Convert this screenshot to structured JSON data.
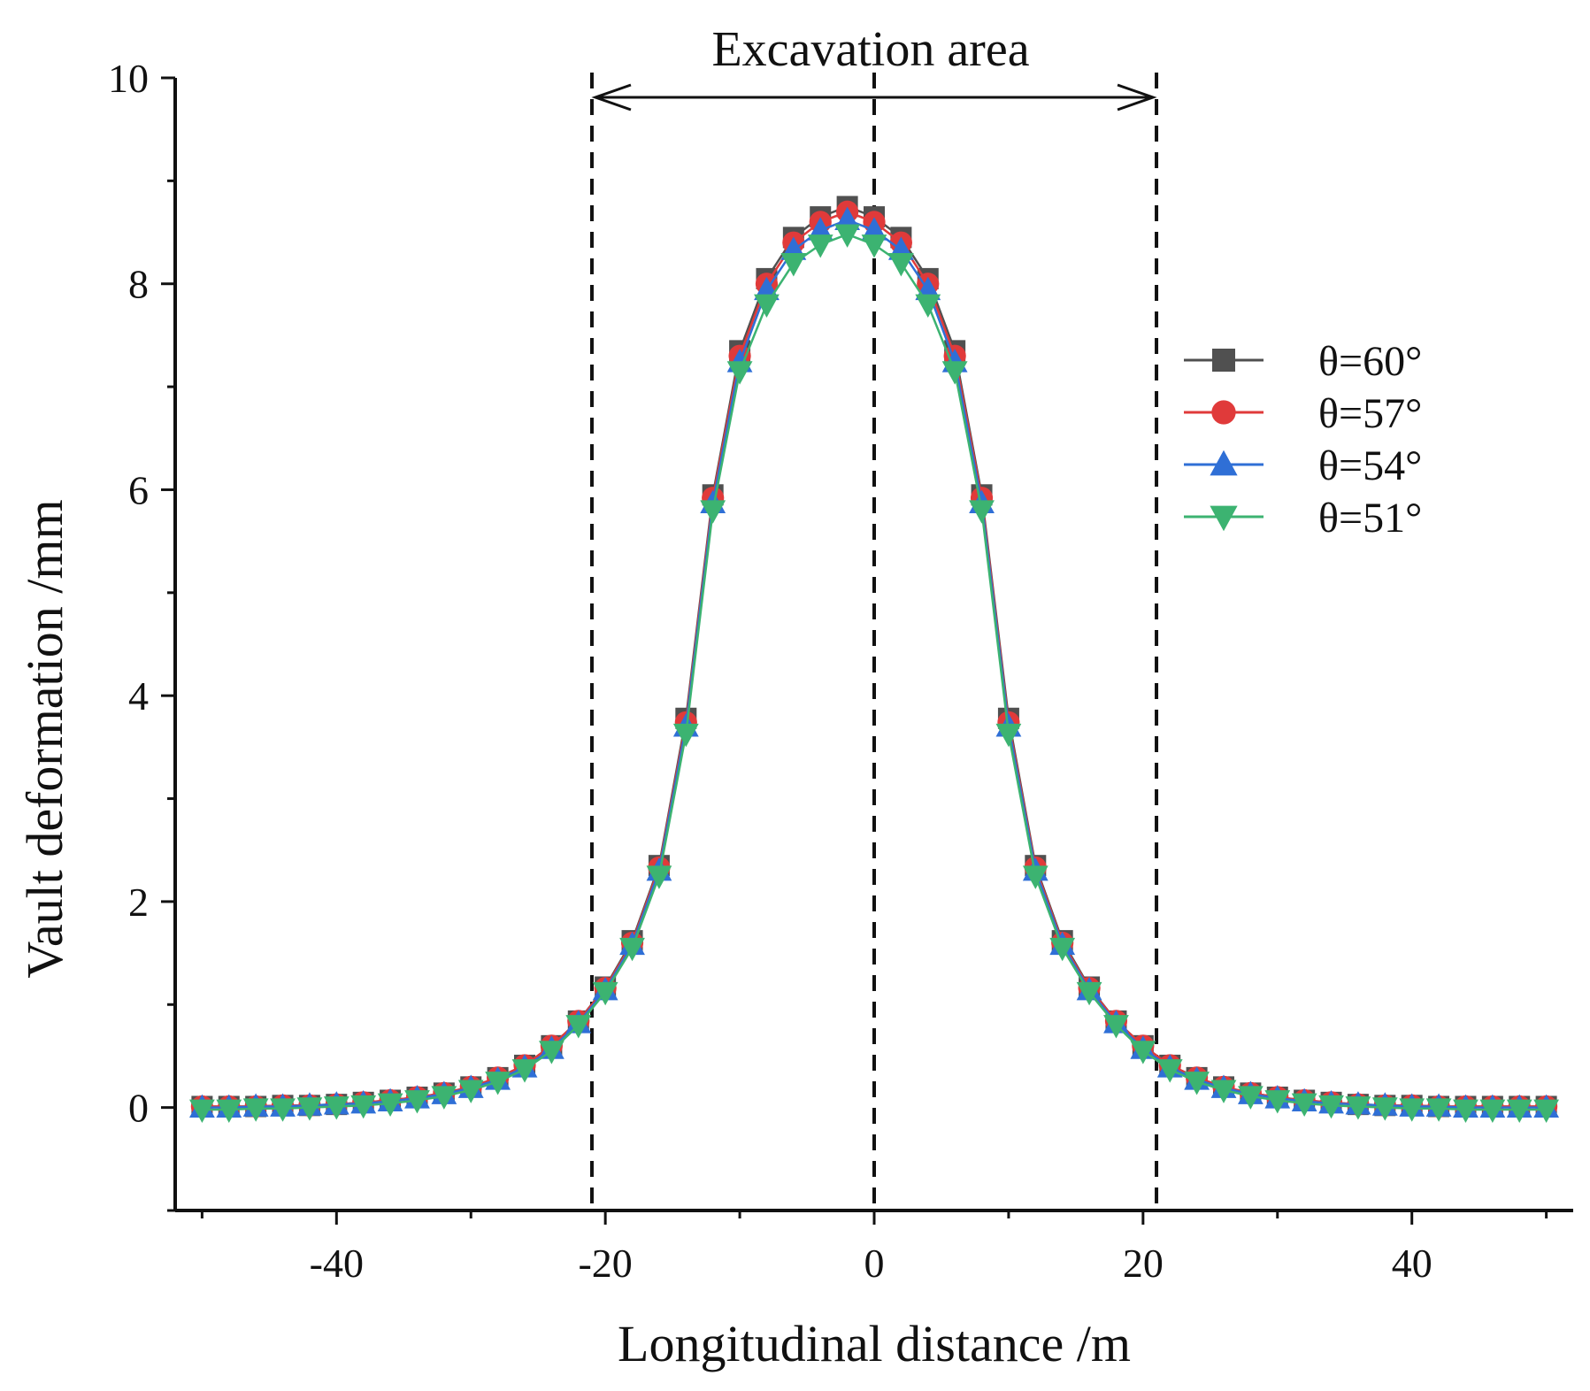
{
  "chart_data": {
    "type": "line",
    "title": "",
    "xlabel": "Longitudinal distance /m",
    "ylabel": "Vault  deformation /mm",
    "xlim": [
      -52,
      52
    ],
    "ylim": [
      -1,
      10
    ],
    "xticks": [
      -40,
      -20,
      0,
      20,
      40
    ],
    "yticks": [
      0,
      2,
      4,
      6,
      8,
      10
    ],
    "x": [
      -50,
      -48,
      -46,
      -44,
      -42,
      -40,
      -38,
      -36,
      -34,
      -32,
      -30,
      -28,
      -26,
      -24,
      -22,
      -20,
      -18,
      -16,
      -14,
      -12,
      -10,
      -8,
      -6,
      -4,
      -2,
      0,
      2,
      4,
      6,
      8,
      10,
      12,
      14,
      16,
      18,
      20,
      22,
      24,
      26,
      28,
      30,
      32,
      34,
      36,
      38,
      40,
      42,
      44,
      46,
      48,
      50
    ],
    "series": [
      {
        "name": "θ=60°",
        "color": "#505050",
        "marker": "square",
        "values": [
          0.01,
          0.01,
          0.01,
          0.02,
          0.02,
          0.03,
          0.05,
          0.07,
          0.1,
          0.14,
          0.2,
          0.29,
          0.41,
          0.6,
          0.84,
          1.17,
          1.62,
          2.35,
          3.78,
          5.95,
          7.35,
          8.05,
          8.45,
          8.65,
          8.75,
          8.65,
          8.45,
          8.05,
          7.35,
          5.95,
          3.78,
          2.35,
          1.62,
          1.17,
          0.84,
          0.6,
          0.41,
          0.29,
          0.2,
          0.14,
          0.1,
          0.07,
          0.05,
          0.03,
          0.02,
          0.02,
          0.01,
          0.01,
          0.01,
          0.01,
          0.01
        ]
      },
      {
        "name": "θ=57°",
        "color": "#e03a3a",
        "marker": "circle",
        "values": [
          0.01,
          0.01,
          0.01,
          0.02,
          0.02,
          0.03,
          0.05,
          0.07,
          0.1,
          0.14,
          0.2,
          0.29,
          0.41,
          0.6,
          0.84,
          1.16,
          1.6,
          2.33,
          3.74,
          5.92,
          7.3,
          8.0,
          8.4,
          8.6,
          8.7,
          8.6,
          8.4,
          8.0,
          7.3,
          5.92,
          3.74,
          2.33,
          1.6,
          1.16,
          0.84,
          0.6,
          0.41,
          0.29,
          0.2,
          0.14,
          0.1,
          0.07,
          0.05,
          0.03,
          0.02,
          0.02,
          0.01,
          0.01,
          0.01,
          0.01,
          0.01
        ]
      },
      {
        "name": "θ=54°",
        "color": "#2f6fd6",
        "marker": "triangle-up",
        "values": [
          0.0,
          0.0,
          0.01,
          0.01,
          0.02,
          0.03,
          0.04,
          0.06,
          0.09,
          0.13,
          0.19,
          0.27,
          0.39,
          0.57,
          0.82,
          1.14,
          1.58,
          2.3,
          3.7,
          5.87,
          7.24,
          7.94,
          8.33,
          8.52,
          8.62,
          8.52,
          8.33,
          7.94,
          7.24,
          5.87,
          3.7,
          2.3,
          1.58,
          1.14,
          0.82,
          0.57,
          0.39,
          0.27,
          0.19,
          0.13,
          0.09,
          0.06,
          0.04,
          0.03,
          0.02,
          0.01,
          0.01,
          0.0,
          0.0,
          0.0,
          0.0
        ]
      },
      {
        "name": "θ=51°",
        "color": "#3cb371",
        "marker": "triangle-down",
        "values": [
          -0.02,
          -0.02,
          -0.01,
          -0.01,
          0.0,
          0.01,
          0.02,
          0.04,
          0.07,
          0.11,
          0.17,
          0.25,
          0.37,
          0.55,
          0.8,
          1.12,
          1.55,
          2.25,
          3.63,
          5.8,
          7.15,
          7.8,
          8.2,
          8.38,
          8.48,
          8.38,
          8.2,
          7.8,
          7.15,
          5.8,
          3.63,
          2.25,
          1.55,
          1.12,
          0.8,
          0.55,
          0.37,
          0.25,
          0.17,
          0.11,
          0.07,
          0.04,
          0.02,
          0.01,
          0.0,
          -0.01,
          -0.01,
          -0.02,
          -0.02,
          -0.02,
          -0.02
        ]
      }
    ],
    "annotations": {
      "excavation_label": "Excavation area",
      "excavation_range": [
        -21,
        21
      ],
      "center_line_x": 0
    },
    "legend_position": "right"
  }
}
